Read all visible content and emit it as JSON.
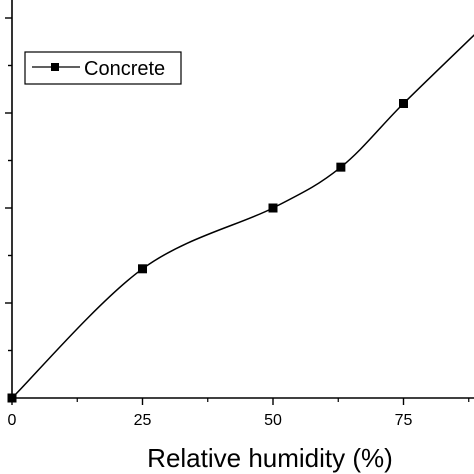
{
  "chart_data": {
    "type": "line",
    "title": "",
    "xlabel": "Relative humidity (%)",
    "ylabel": "",
    "xlim": [
      0,
      88
    ],
    "ylim": [
      0,
      4.2
    ],
    "x_ticks": [
      0,
      25,
      50,
      75
    ],
    "x_tick_labels": [
      "0",
      "25",
      "50",
      "75"
    ],
    "grid": false,
    "legend_position": "top-left",
    "series": [
      {
        "name": "Concrete",
        "color": "#000000",
        "marker": "square",
        "x": [
          0,
          25,
          50,
          63,
          75
        ],
        "y": [
          0,
          1.36,
          2.0,
          2.43,
          3.1
        ]
      }
    ]
  }
}
